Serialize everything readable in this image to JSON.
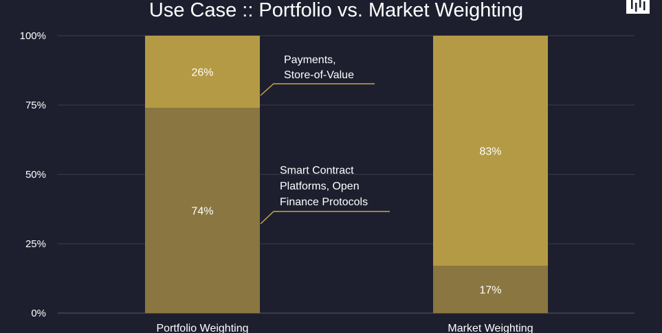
{
  "chart_data": {
    "type": "bar",
    "stacked": true,
    "title": "Use Case :: Portfolio vs. Market Weighting",
    "categories": [
      "Portfolio Weighting",
      "Market Weighting"
    ],
    "series": [
      {
        "name": "Smart Contract Platforms, Open Finance Protocols",
        "values": [
          74,
          17
        ],
        "color": "#8a7640"
      },
      {
        "name": "Payments, Store-of-Value",
        "values": [
          26,
          83
        ],
        "color": "#b49a44"
      }
    ],
    "data_labels": {
      "bottom": [
        "74%",
        "17%"
      ],
      "top": [
        "26%",
        "83%"
      ]
    },
    "ylim": [
      0,
      100
    ],
    "yticks": [
      "0%",
      "25%",
      "50%",
      "75%",
      "100%"
    ],
    "grid": true,
    "annotations": [
      {
        "lines": [
          "Payments,",
          "Store-of-Value"
        ]
      },
      {
        "lines": [
          "Smart Contract",
          "Platforms, Open",
          "Finance Protocols"
        ]
      }
    ],
    "logo": "bars-logo-icon",
    "colors": {
      "background": "#1e1f2e",
      "accent": "#c9a84a"
    }
  }
}
